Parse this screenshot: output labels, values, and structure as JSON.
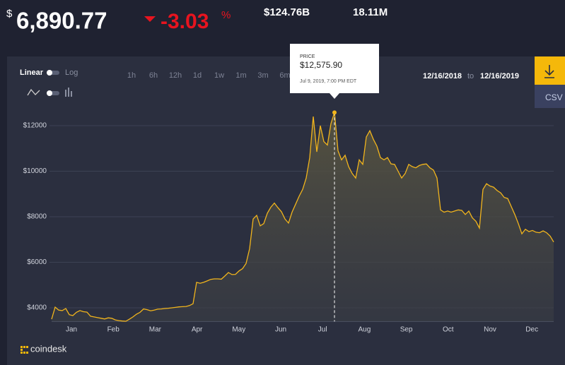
{
  "header": {
    "currency": "$",
    "price": "6,890.77",
    "change": "-3.03",
    "change_unit": "%",
    "market_cap": "$124.76B",
    "volume": "18.11M"
  },
  "controls": {
    "linear": "Linear",
    "log": "Log",
    "ranges": [
      "1h",
      "6h",
      "12h",
      "1d",
      "1w",
      "1m",
      "3m",
      "6m"
    ],
    "date_from": "12/16/2018",
    "date_sep": "to",
    "date_to": "12/16/2019",
    "csv": "CSV"
  },
  "tooltip": {
    "label": "PRICE",
    "price": "$12,575.90",
    "date": "Jul 9, 2019, 7:00 PM EDT"
  },
  "logo": "coindesk",
  "chart_data": {
    "type": "line",
    "color": "#f2b51c",
    "grid": true,
    "x_labels": [
      "Jan",
      "Feb",
      "Mar",
      "Apr",
      "May",
      "Jun",
      "Jul",
      "Aug",
      "Sep",
      "Oct",
      "Nov",
      "Dec"
    ],
    "ylim": [
      3400,
      12900
    ],
    "yticks": [
      {
        "value": 4000,
        "label": "$4000"
      },
      {
        "value": 6000,
        "label": "$6000"
      },
      {
        "value": 8000,
        "label": "$8000"
      },
      {
        "value": 10000,
        "label": "$10000"
      },
      {
        "value": 12000,
        "label": "$12000"
      }
    ],
    "values": [
      3500,
      4030,
      3900,
      3880,
      3970,
      3700,
      3660,
      3800,
      3880,
      3830,
      3810,
      3630,
      3600,
      3570,
      3540,
      3510,
      3560,
      3540,
      3470,
      3440,
      3420,
      3410,
      3500,
      3600,
      3720,
      3800,
      3950,
      3920,
      3870,
      3900,
      3940,
      3950,
      3970,
      3980,
      4000,
      4020,
      4040,
      4050,
      4060,
      4100,
      4180,
      5120,
      5080,
      5120,
      5180,
      5250,
      5270,
      5270,
      5260,
      5400,
      5550,
      5460,
      5470,
      5620,
      5720,
      5950,
      6600,
      7900,
      8060,
      7600,
      7700,
      8150,
      8420,
      8600,
      8400,
      8220,
      7900,
      7720,
      8200,
      8550,
      8900,
      9200,
      9700,
      10600,
      12400,
      10850,
      12000,
      11300,
      11150,
      12090,
      12575.9,
      10900,
      10500,
      10700,
      10200,
      9900,
      9700,
      10500,
      10300,
      11500,
      11780,
      11400,
      11100,
      10600,
      10500,
      10600,
      10320,
      10300,
      10000,
      9700,
      9900,
      10300,
      10200,
      10150,
      10250,
      10300,
      10320,
      10150,
      10050,
      9700,
      8300,
      8200,
      8250,
      8200,
      8250,
      8300,
      8280,
      8100,
      8250,
      7950,
      7800,
      7500,
      9200,
      9450,
      9350,
      9300,
      9150,
      9050,
      8850,
      8800,
      8450,
      8100,
      7700,
      7250,
      7450,
      7350,
      7400,
      7320,
      7300,
      7380,
      7300,
      7150,
      6890.77
    ]
  }
}
